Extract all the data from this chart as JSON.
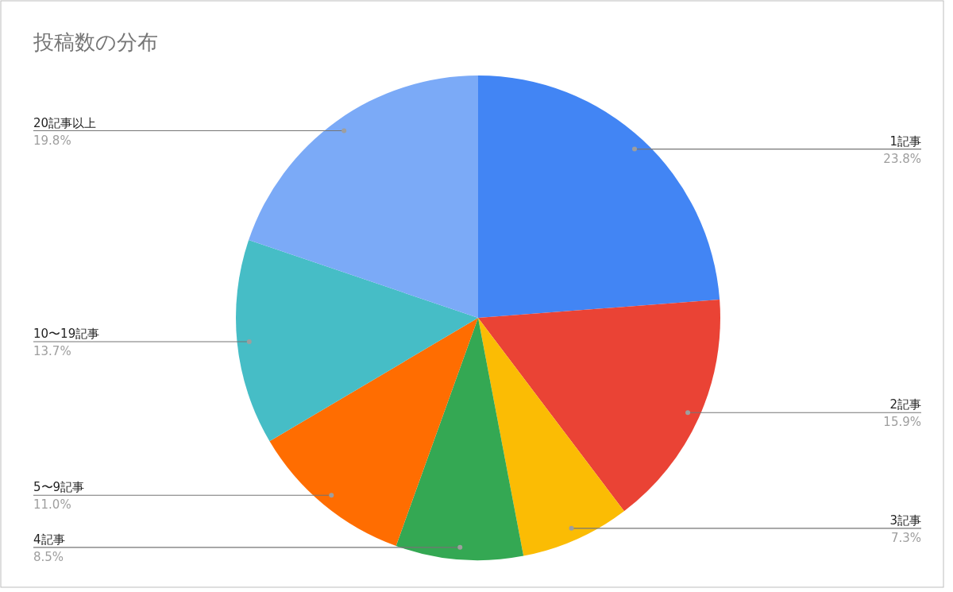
{
  "chart_data": {
    "type": "pie",
    "title": "投稿数の分布",
    "categories": [
      "1記事",
      "2記事",
      "3記事",
      "4記事",
      "5〜9記事",
      "10〜19記事",
      "20記事以上"
    ],
    "values": [
      23.8,
      15.9,
      7.3,
      8.5,
      11.0,
      13.7,
      19.8
    ],
    "value_labels": [
      "23.8%",
      "15.9%",
      "7.3%",
      "8.5%",
      "11.0%",
      "13.7%",
      "19.8%"
    ],
    "colors": [
      "#4285f4",
      "#ea4335",
      "#fbbc04",
      "#34a853",
      "#ff6d01",
      "#46bdc6",
      "#7baaf7"
    ]
  }
}
